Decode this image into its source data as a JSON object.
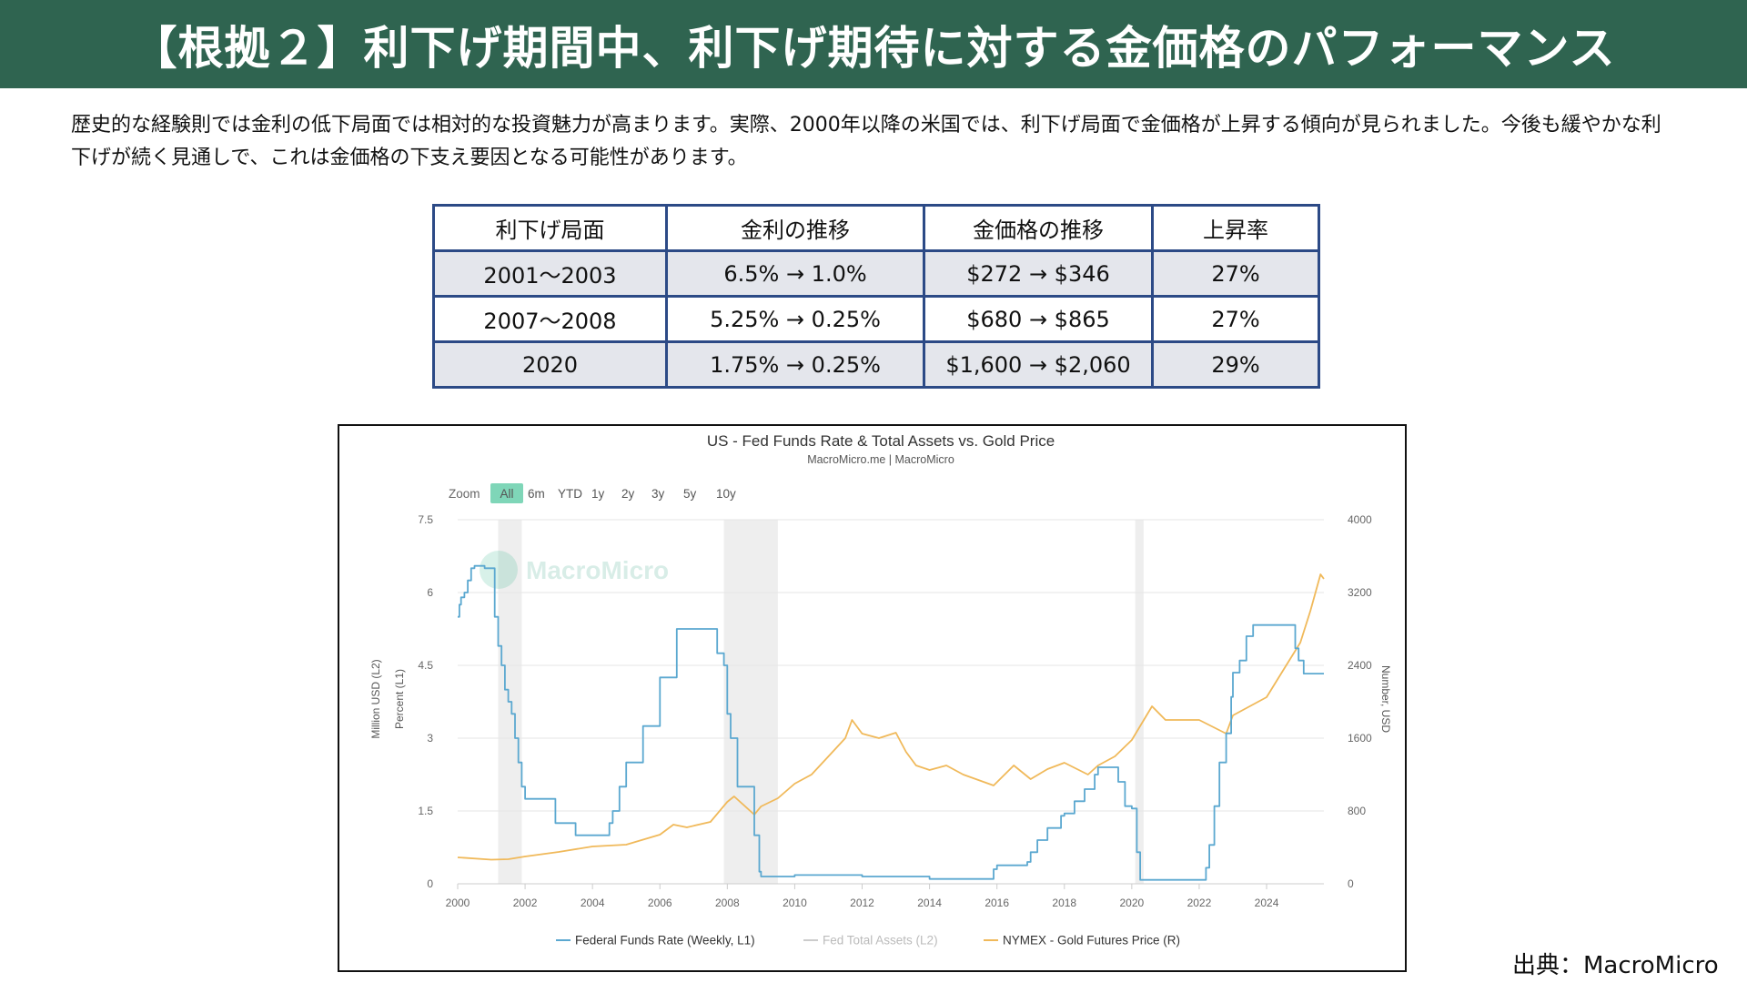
{
  "page": {
    "title": "【根拠２】利下げ期間中、利下げ期待に対する金価格のパフォーマンス",
    "intro": "歴史的な経験則では金利の低下局面では相対的な投資魅力が高まります。実際、2000年以降の米国では、利下げ局面で金価格が上昇する傾向が見られました。今後も緩やかな利下げが続く見通しで、これは金価格の下支え要因となる可能性があります。",
    "source": "出典：MacroMicro"
  },
  "table": {
    "headers": [
      "利下げ局面",
      "金利の推移",
      "金価格の推移",
      "上昇率"
    ],
    "rows": [
      [
        "2001〜2003",
        "6.5% → 1.0%",
        "$272 → $346",
        "27%"
      ],
      [
        "2007〜2008",
        "5.25% → 0.25%",
        "$680 → $865",
        "27%"
      ],
      [
        "2020",
        "1.75% → 0.25%",
        "$1,600 → $2,060",
        "29%"
      ]
    ]
  },
  "chart": {
    "watermark": "MacroMicro",
    "zoom_label": "Zoom",
    "zoom_options": [
      "All",
      "6m",
      "YTD",
      "1y",
      "2y",
      "3y",
      "5y",
      "10y"
    ],
    "zoom_selected": "All"
  },
  "chart_data": {
    "type": "line",
    "title": "US - Fed Funds Rate & Total Assets vs. Gold Price",
    "subtitle": "MacroMicro.me | MacroMicro",
    "xlabel": "",
    "x_ticks": [
      2000,
      2002,
      2004,
      2006,
      2008,
      2010,
      2012,
      2014,
      2016,
      2018,
      2020,
      2022,
      2024
    ],
    "xlim": [
      2000,
      2025.7
    ],
    "left_axis": {
      "labels": [
        "Million USD (L2)",
        "Percent (L1)"
      ],
      "ticks": [
        "0",
        "1.5",
        "3",
        "4.5",
        "6",
        "7.5"
      ],
      "ylim": [
        0,
        7.5
      ]
    },
    "right_axis": {
      "label": "Number, USD",
      "ticks": [
        "0",
        "800",
        "1600",
        "2400",
        "3200",
        "4000"
      ],
      "ylim": [
        0,
        4000
      ]
    },
    "recessions": [
      [
        2001.2,
        2001.9
      ],
      [
        2007.9,
        2009.5
      ],
      [
        2020.1,
        2020.35
      ]
    ],
    "legend_position": "bottom",
    "series": [
      {
        "name": "Federal Funds Rate (Weekly, L1)",
        "axis": "left",
        "color": "#5ba8d0",
        "x": [
          2000.0,
          2000.05,
          2000.1,
          2000.2,
          2000.3,
          2000.4,
          2000.5,
          2000.8,
          2001.0,
          2001.1,
          2001.2,
          2001.3,
          2001.4,
          2001.5,
          2001.6,
          2001.7,
          2001.8,
          2001.9,
          2002.0,
          2002.8,
          2002.9,
          2003.4,
          2003.5,
          2004.4,
          2004.5,
          2004.6,
          2004.8,
          2005.0,
          2005.5,
          2006.0,
          2006.5,
          2007.0,
          2007.6,
          2007.7,
          2007.9,
          2008.0,
          2008.1,
          2008.3,
          2008.6,
          2008.8,
          2008.95,
          2009.0,
          2010.0,
          2012.0,
          2014.0,
          2015.9,
          2016.0,
          2016.9,
          2017.0,
          2017.2,
          2017.5,
          2017.9,
          2018.0,
          2018.3,
          2018.6,
          2018.9,
          2019.0,
          2019.5,
          2019.6,
          2019.8,
          2020.0,
          2020.15,
          2020.25,
          2021.0,
          2022.0,
          2022.2,
          2022.3,
          2022.45,
          2022.6,
          2022.8,
          2022.95,
          2023.0,
          2023.2,
          2023.4,
          2023.6,
          2024.0,
          2024.7,
          2024.85,
          2024.95,
          2025.1,
          2025.7
        ],
        "values": [
          5.5,
          5.75,
          5.9,
          6.0,
          6.25,
          6.5,
          6.55,
          6.5,
          6.5,
          5.5,
          4.9,
          4.5,
          4.0,
          3.75,
          3.5,
          3.0,
          2.5,
          2.0,
          1.75,
          1.75,
          1.25,
          1.25,
          1.0,
          1.0,
          1.25,
          1.5,
          2.0,
          2.5,
          3.25,
          4.25,
          5.25,
          5.25,
          5.25,
          4.75,
          4.5,
          3.5,
          3.0,
          2.0,
          2.0,
          1.0,
          0.25,
          0.15,
          0.18,
          0.15,
          0.1,
          0.3,
          0.38,
          0.45,
          0.65,
          0.9,
          1.15,
          1.4,
          1.45,
          1.7,
          1.95,
          2.25,
          2.4,
          2.4,
          2.1,
          1.6,
          1.55,
          0.65,
          0.08,
          0.08,
          0.08,
          0.33,
          0.8,
          1.6,
          2.5,
          3.1,
          3.85,
          4.35,
          4.6,
          5.1,
          5.33,
          5.33,
          5.33,
          4.85,
          4.6,
          4.33,
          4.33
        ]
      },
      {
        "name": "Fed Total Assets (L2)",
        "axis": "left",
        "color": "#cccccc",
        "hidden": true,
        "x": [],
        "values": []
      },
      {
        "name": "NYMEX - Gold Futures Price (R)",
        "axis": "right",
        "color": "#f0b95a",
        "x": [
          2000.0,
          2001.0,
          2001.5,
          2002.0,
          2003.0,
          2004.0,
          2005.0,
          2006.0,
          2006.4,
          2006.8,
          2007.5,
          2008.0,
          2008.2,
          2008.8,
          2009.0,
          2009.5,
          2010.0,
          2010.5,
          2011.0,
          2011.5,
          2011.7,
          2012.0,
          2012.5,
          2013.0,
          2013.3,
          2013.6,
          2014.0,
          2014.5,
          2015.0,
          2015.9,
          2016.5,
          2017.0,
          2017.5,
          2018.0,
          2018.7,
          2019.0,
          2019.5,
          2020.0,
          2020.6,
          2021.0,
          2021.5,
          2022.0,
          2022.8,
          2023.0,
          2023.5,
          2024.0,
          2024.5,
          2025.0,
          2025.3,
          2025.6,
          2025.7
        ],
        "values": [
          290,
          265,
          270,
          300,
          350,
          410,
          430,
          540,
          650,
          620,
          680,
          900,
          960,
          760,
          850,
          940,
          1100,
          1200,
          1400,
          1600,
          1800,
          1650,
          1600,
          1660,
          1450,
          1300,
          1250,
          1300,
          1200,
          1080,
          1300,
          1150,
          1260,
          1330,
          1200,
          1300,
          1400,
          1580,
          1950,
          1800,
          1800,
          1800,
          1650,
          1850,
          1950,
          2050,
          2350,
          2650,
          3000,
          3400,
          3350
        ]
      }
    ]
  }
}
